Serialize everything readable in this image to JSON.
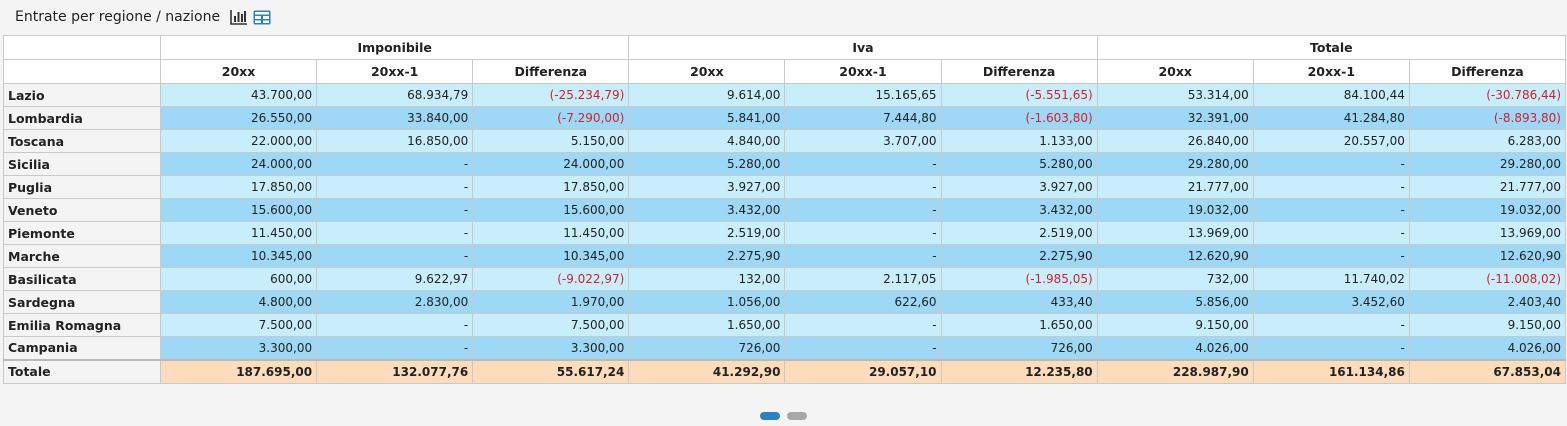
{
  "header": {
    "title": "Entrate per regione / nazione",
    "icons": [
      "bar-chart-icon",
      "table-icon"
    ]
  },
  "table": {
    "groups": [
      "Imponibile",
      "Iva",
      "Totale"
    ],
    "columns": [
      "20xx",
      "20xx-1",
      "Differenza",
      "20xx",
      "20xx-1",
      "Differenza",
      "20xx",
      "20xx-1",
      "Differenza"
    ],
    "rows": [
      {
        "region": "Lazio",
        "values": [
          "43.700,00",
          "68.934,79",
          "(-25.234,79)",
          "9.614,00",
          "15.165,65",
          "(-5.551,65)",
          "53.314,00",
          "84.100,44",
          "(-30.786,44)"
        ]
      },
      {
        "region": "Lombardia",
        "values": [
          "26.550,00",
          "33.840,00",
          "(-7.290,00)",
          "5.841,00",
          "7.444,80",
          "(-1.603,80)",
          "32.391,00",
          "41.284,80",
          "(-8.893,80)"
        ]
      },
      {
        "region": "Toscana",
        "values": [
          "22.000,00",
          "16.850,00",
          "5.150,00",
          "4.840,00",
          "3.707,00",
          "1.133,00",
          "26.840,00",
          "20.557,00",
          "6.283,00"
        ]
      },
      {
        "region": "Sicilia",
        "values": [
          "24.000,00",
          "-",
          "24.000,00",
          "5.280,00",
          "-",
          "5.280,00",
          "29.280,00",
          "-",
          "29.280,00"
        ]
      },
      {
        "region": "Puglia",
        "values": [
          "17.850,00",
          "-",
          "17.850,00",
          "3.927,00",
          "-",
          "3.927,00",
          "21.777,00",
          "-",
          "21.777,00"
        ]
      },
      {
        "region": "Veneto",
        "values": [
          "15.600,00",
          "-",
          "15.600,00",
          "3.432,00",
          "-",
          "3.432,00",
          "19.032,00",
          "-",
          "19.032,00"
        ]
      },
      {
        "region": "Piemonte",
        "values": [
          "11.450,00",
          "-",
          "11.450,00",
          "2.519,00",
          "-",
          "2.519,00",
          "13.969,00",
          "-",
          "13.969,00"
        ]
      },
      {
        "region": "Marche",
        "values": [
          "10.345,00",
          "-",
          "10.345,00",
          "2.275,90",
          "-",
          "2.275,90",
          "12.620,90",
          "-",
          "12.620,90"
        ]
      },
      {
        "region": "Basilicata",
        "values": [
          "600,00",
          "9.622,97",
          "(-9.022,97)",
          "132,00",
          "2.117,05",
          "(-1.985,05)",
          "732,00",
          "11.740,02",
          "(-11.008,02)"
        ]
      },
      {
        "region": "Sardegna",
        "values": [
          "4.800,00",
          "2.830,00",
          "1.970,00",
          "1.056,00",
          "622,60",
          "433,40",
          "5.856,00",
          "3.452,60",
          "2.403,40"
        ]
      },
      {
        "region": "Emilia Romagna",
        "values": [
          "7.500,00",
          "-",
          "7.500,00",
          "1.650,00",
          "-",
          "1.650,00",
          "9.150,00",
          "-",
          "9.150,00"
        ]
      },
      {
        "region": "Campania",
        "values": [
          "3.300,00",
          "-",
          "3.300,00",
          "726,00",
          "-",
          "726,00",
          "4.026,00",
          "-",
          "4.026,00"
        ]
      }
    ],
    "total": {
      "region": "Totale",
      "values": [
        "187.695,00",
        "132.077,76",
        "55.617,24",
        "41.292,90",
        "29.057,10",
        "12.235,80",
        "228.987,90",
        "161.134,86",
        "67.853,04"
      ]
    }
  },
  "pager": {
    "pages": 2,
    "active": 0
  },
  "colors": {
    "row_light": "#c8eefb",
    "row_dark": "#9ed8f7",
    "total_bg": "#fddcbc",
    "negative": "#d4202a",
    "accent": "#2f80c2"
  }
}
